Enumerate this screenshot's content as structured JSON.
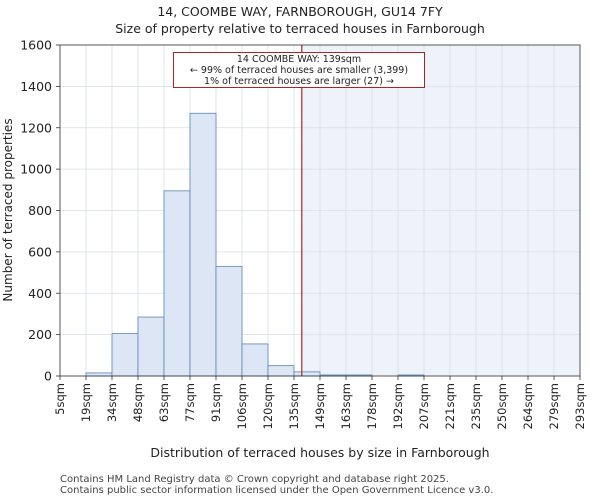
{
  "page": {
    "title_line1": "14, COOMBE WAY, FARNBOROUGH, GU14 7FY",
    "title_line2": "Size of property relative to terraced houses in Farnborough",
    "footer_line1": "Contains HM Land Registry data © Crown copyright and database right 2025.",
    "footer_line2": "Contains public sector information licensed under the Open Government Licence v3.0."
  },
  "annotation": {
    "line1": "14 COOMBE WAY: 139sqm",
    "line2": "← 99% of terraced houses are smaller (3,399)",
    "line3": "1% of terraced houses are larger (27) →"
  },
  "chart_data": {
    "type": "bar",
    "title": "Size of property relative to terraced houses in Farnborough",
    "xlabel": "Distribution of terraced houses by size in Farnborough",
    "ylabel": "Number of terraced properties",
    "categories": [
      "5sqm",
      "19sqm",
      "34sqm",
      "48sqm",
      "63sqm",
      "77sqm",
      "91sqm",
      "106sqm",
      "120sqm",
      "135sqm",
      "149sqm",
      "163sqm",
      "178sqm",
      "192sqm",
      "207sqm",
      "221sqm",
      "235sqm",
      "250sqm",
      "264sqm",
      "279sqm",
      "293sqm"
    ],
    "values": [
      0,
      15,
      205,
      285,
      895,
      1270,
      530,
      155,
      50,
      20,
      5,
      5,
      0,
      5,
      0,
      0,
      0,
      0,
      0,
      0,
      0
    ],
    "ylim": [
      0,
      1600
    ],
    "yticks": [
      0,
      200,
      400,
      600,
      800,
      1000,
      1200,
      1400,
      1600
    ],
    "marker": {
      "value_sqm": 139,
      "bin_position": 9.3
    },
    "colors": {
      "bar_fill": "#dce6f4",
      "bar_edge": "#5a84b8",
      "highlight_fill": "#eef2fa",
      "marker_line": "#b22222",
      "grid": "#d7dde8"
    }
  }
}
